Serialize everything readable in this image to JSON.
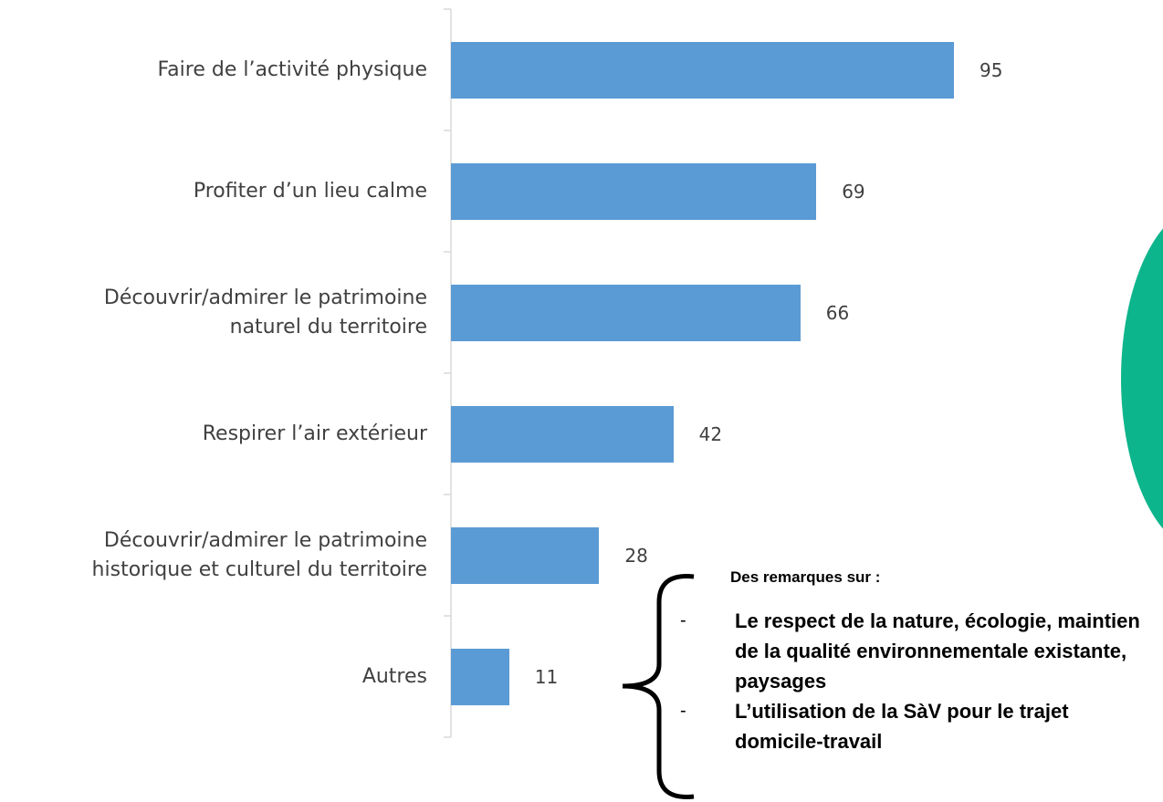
{
  "chart_data": {
    "type": "bar",
    "orientation": "horizontal",
    "categories": [
      "Faire de l’activité physique",
      "Profiter d’un lieu calme",
      "Découvrir/admirer le patrimoine\nnaturel du territoire",
      "Respirer l’air extérieur",
      "Découvrir/admirer le patrimoine\nhistorique et culturel du territoire",
      "Autres"
    ],
    "values": [
      95,
      69,
      66,
      42,
      28,
      11
    ],
    "color": "#5b9bd5",
    "xlim": [
      0,
      100
    ],
    "annotation": {
      "title": "Des remarques sur :",
      "items": [
        "Le respect de la nature, écologie, maintien de la qualité environnementale existante, paysages",
        "L’utilisation de la SàV pour le trajet domicile-travail"
      ]
    }
  }
}
